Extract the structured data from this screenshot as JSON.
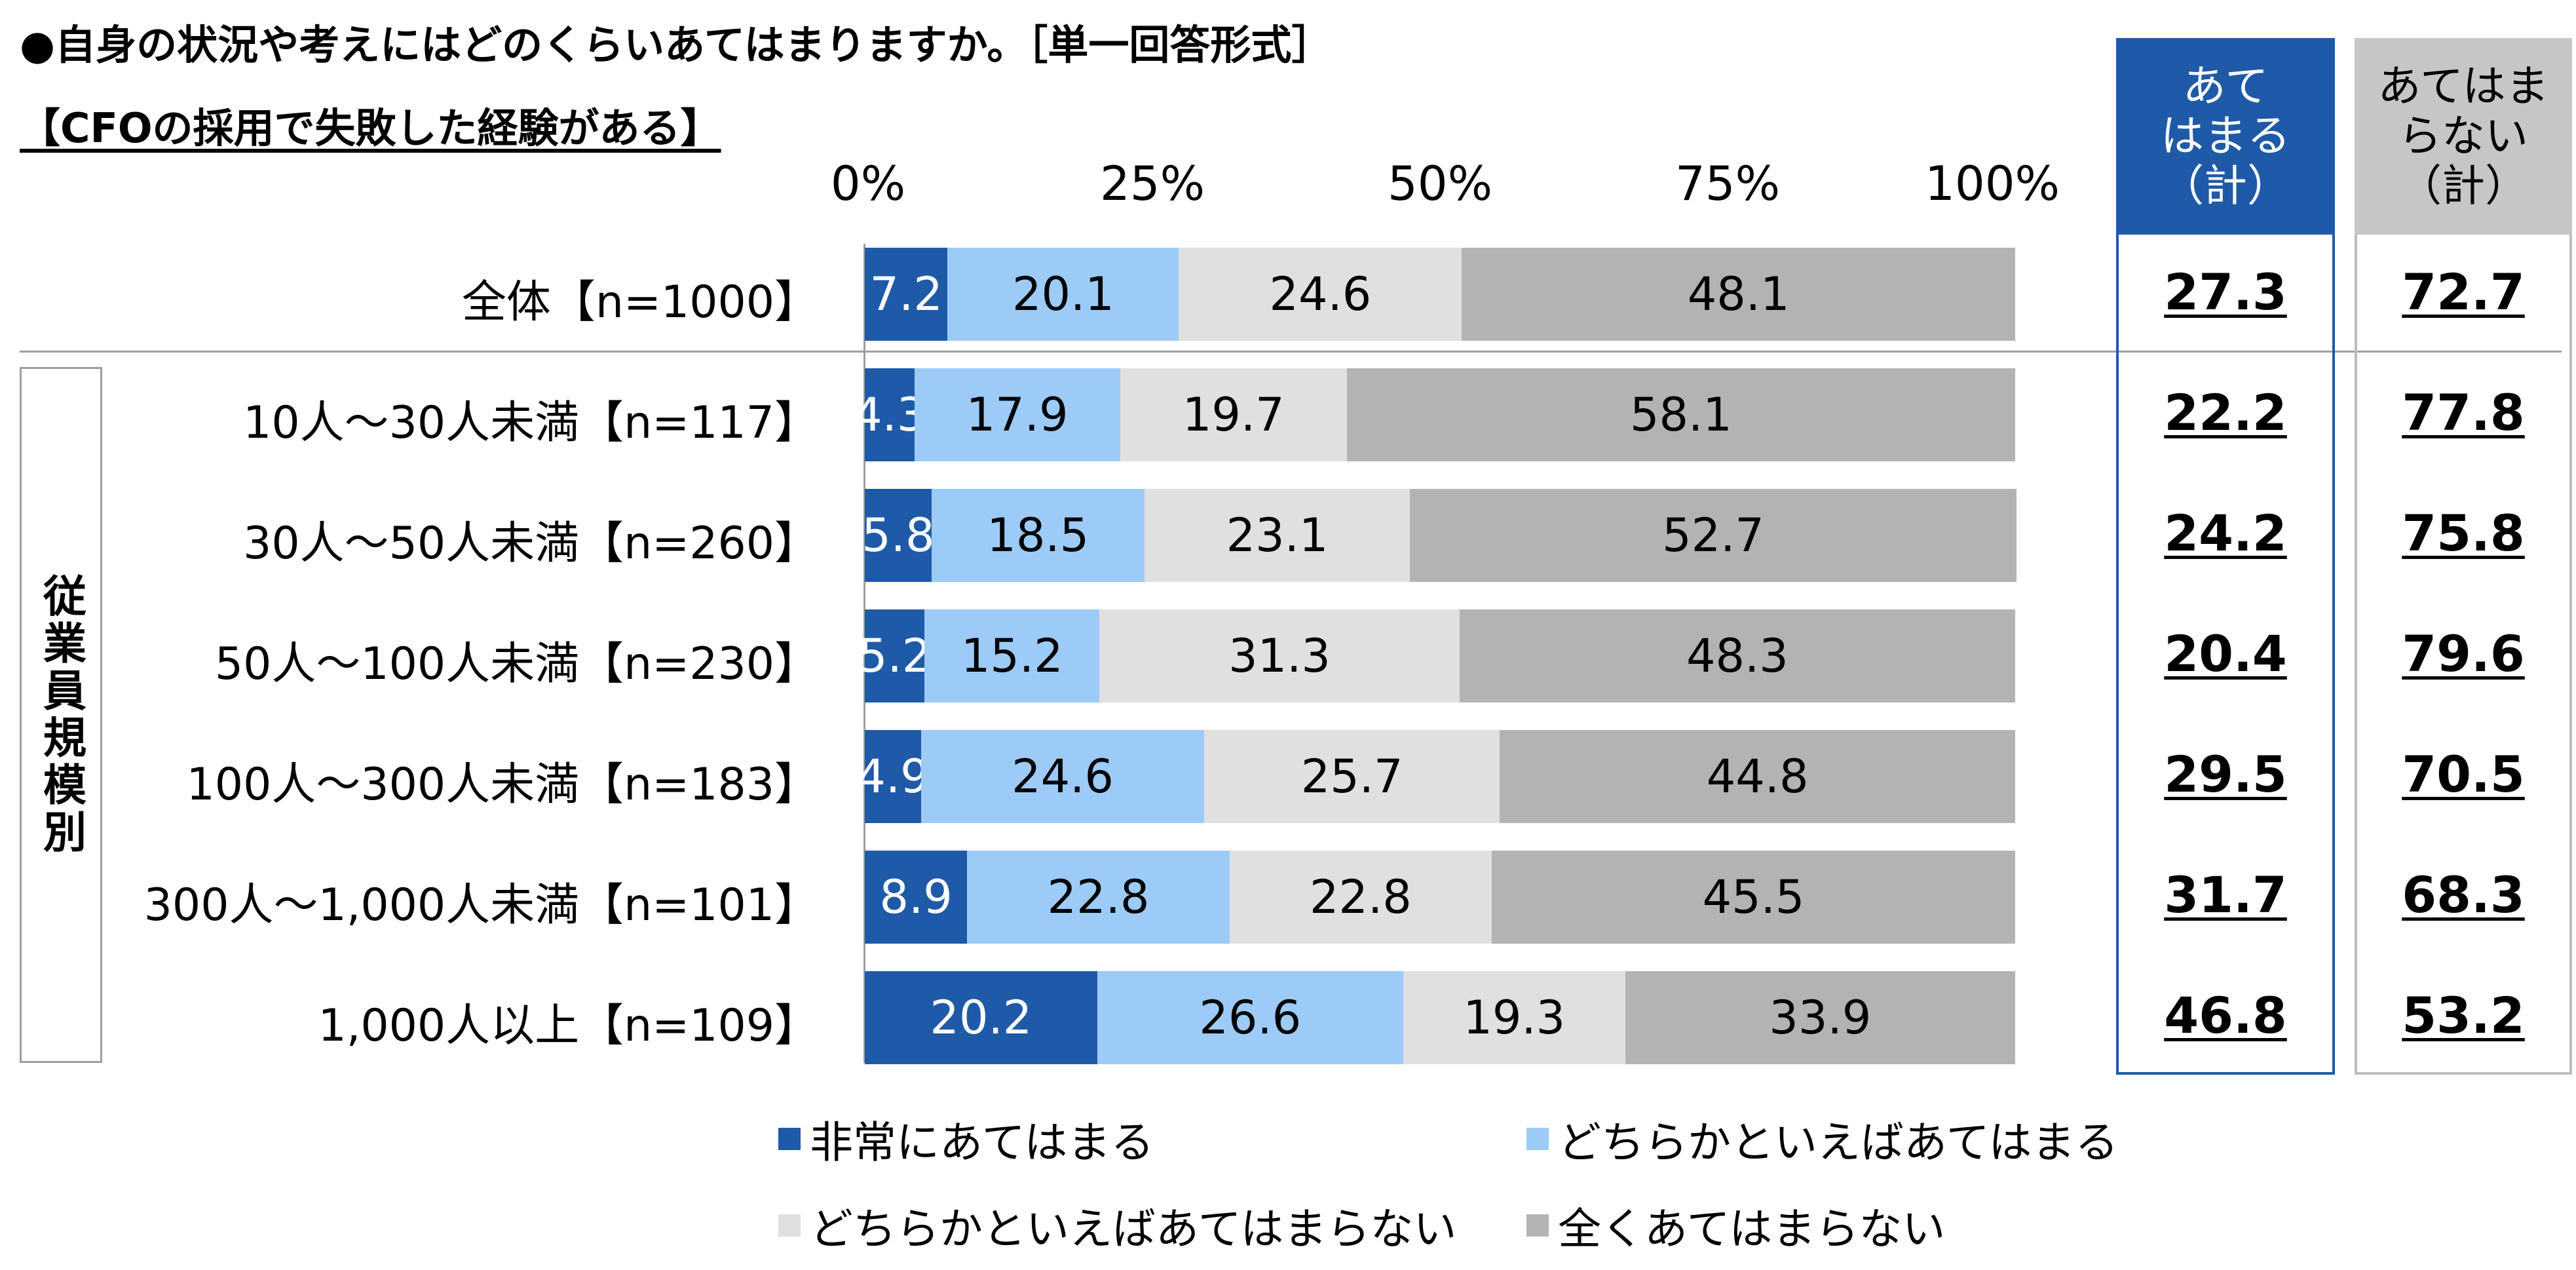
{
  "title": "●自身の状況や考えにはどのくらいあてはまりますか。［単一回答形式］",
  "subtitle": "【CFOの採用で失敗した経験がある】",
  "group_label": "従業員規模別",
  "colors": {
    "very_applies": "#1f5aa8",
    "somewhat_applies": "#9ccbf7",
    "somewhat_not": "#e0e0e0",
    "not_at_all": "#b3b3b3",
    "sum_head_applies": "#1f5aa8",
    "sum_head_not": "#c6c6c6"
  },
  "summary_headers": {
    "applies": "あて\nはまる\n（計）",
    "not_applies": "あてはま\nらない\n（計）"
  },
  "chart_data": {
    "type": "bar",
    "orientation": "horizontal",
    "stacked": true,
    "xlim": [
      0,
      100
    ],
    "x_ticks": [
      "0%",
      "25%",
      "50%",
      "75%",
      "100%"
    ],
    "categories": [
      "全体【n=1000】",
      "10人～30人未満【n=117】",
      "30人～50人未満【n=260】",
      "50人～100人未満【n=230】",
      "100人～300人未満【n=183】",
      "300人～1,000人未満【n=101】",
      "1,000人以上【n=109】"
    ],
    "series": [
      {
        "name": "非常にあてはまる",
        "values": [
          7.2,
          4.3,
          5.8,
          5.2,
          4.9,
          8.9,
          20.2
        ]
      },
      {
        "name": "どちらかといえばあてはまる",
        "values": [
          20.1,
          17.9,
          18.5,
          15.2,
          24.6,
          22.8,
          26.6
        ]
      },
      {
        "name": "どちらかといえばあてはまらない",
        "values": [
          24.6,
          19.7,
          23.1,
          31.3,
          25.7,
          22.8,
          19.3
        ]
      },
      {
        "name": "全くあてはまらない",
        "values": [
          48.1,
          58.1,
          52.7,
          48.3,
          44.8,
          45.5,
          33.9
        ]
      }
    ],
    "totals_applies": [
      27.3,
      22.2,
      24.2,
      20.4,
      29.5,
      31.7,
      46.8
    ],
    "totals_not_applies": [
      72.7,
      77.8,
      75.8,
      79.6,
      70.5,
      68.3,
      53.2
    ],
    "legend": "bottom"
  }
}
